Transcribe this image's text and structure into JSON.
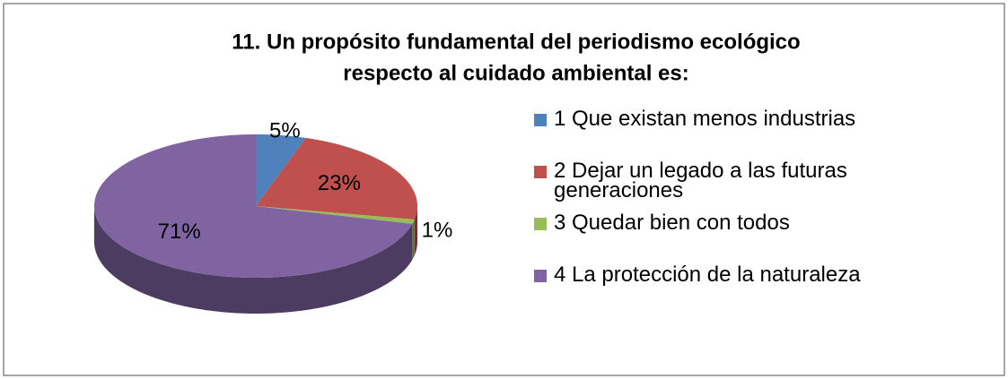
{
  "chart_data": {
    "type": "pie",
    "title": [
      "11.  Un propósito fundamental del periodismo ecológico",
      "respecto al cuidado ambiental es:"
    ],
    "categories": [
      "1 Que existan menos industrias",
      "2 Dejar un legado a las futuras generaciones",
      "3 Quedar bien con todos",
      "4 La protección de la naturaleza"
    ],
    "values": [
      5,
      23,
      1,
      71
    ],
    "value_labels": [
      "5%",
      "23%",
      "1%",
      "71%"
    ],
    "colors": [
      "#4f81bd",
      "#c0504d",
      "#9bbb59",
      "#8064a2"
    ],
    "legend": "right"
  }
}
